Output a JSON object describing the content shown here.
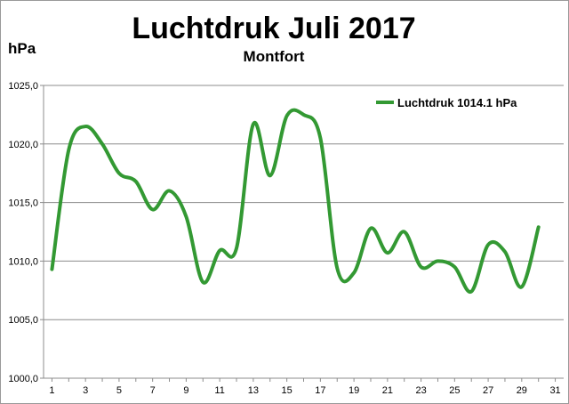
{
  "chart_data": {
    "type": "line",
    "title": "Luchtdruk Juli 2017",
    "subtitle": "Montfort",
    "ylabel": "hPa",
    "xlabel": "",
    "ylim": [
      1000,
      1025
    ],
    "yticks": [
      "1000,0",
      "1005,0",
      "1010,0",
      "1015,0",
      "1020,0",
      "1025,0"
    ],
    "ytick_values": [
      1000,
      1005,
      1010,
      1015,
      1020,
      1025
    ],
    "xticks": [
      "1",
      "3",
      "5",
      "7",
      "9",
      "11",
      "13",
      "15",
      "17",
      "19",
      "21",
      "23",
      "25",
      "27",
      "29",
      "31"
    ],
    "xtick_values": [
      1,
      3,
      5,
      7,
      9,
      11,
      13,
      15,
      17,
      19,
      21,
      23,
      25,
      27,
      29,
      31
    ],
    "xlim": [
      0.5,
      31.5
    ],
    "grid": "horizontal",
    "legend_position": "top-right",
    "line_color": "#339933",
    "series": [
      {
        "name": "Luchtdruk 1014.1 hPa",
        "x": [
          1,
          2,
          3,
          4,
          5,
          6,
          7,
          8,
          9,
          10,
          11,
          12,
          13,
          14,
          15,
          16,
          17,
          18,
          19,
          20,
          21,
          22,
          23,
          24,
          25,
          26,
          27,
          28,
          29,
          30,
          31
        ],
        "values": [
          1009.3,
          1019.5,
          1021.5,
          1020.0,
          1017.5,
          1016.8,
          1014.4,
          1016.0,
          1013.8,
          1008.2,
          1010.9,
          1011.1,
          1021.7,
          1017.3,
          1022.4,
          1022.5,
          1020.5,
          1009.4,
          1009.0,
          1012.8,
          1010.7,
          1012.5,
          1009.5,
          1010.0,
          1009.5,
          1007.4,
          1011.4,
          1010.8,
          1007.8,
          1012.9,
          null
        ]
      }
    ]
  }
}
